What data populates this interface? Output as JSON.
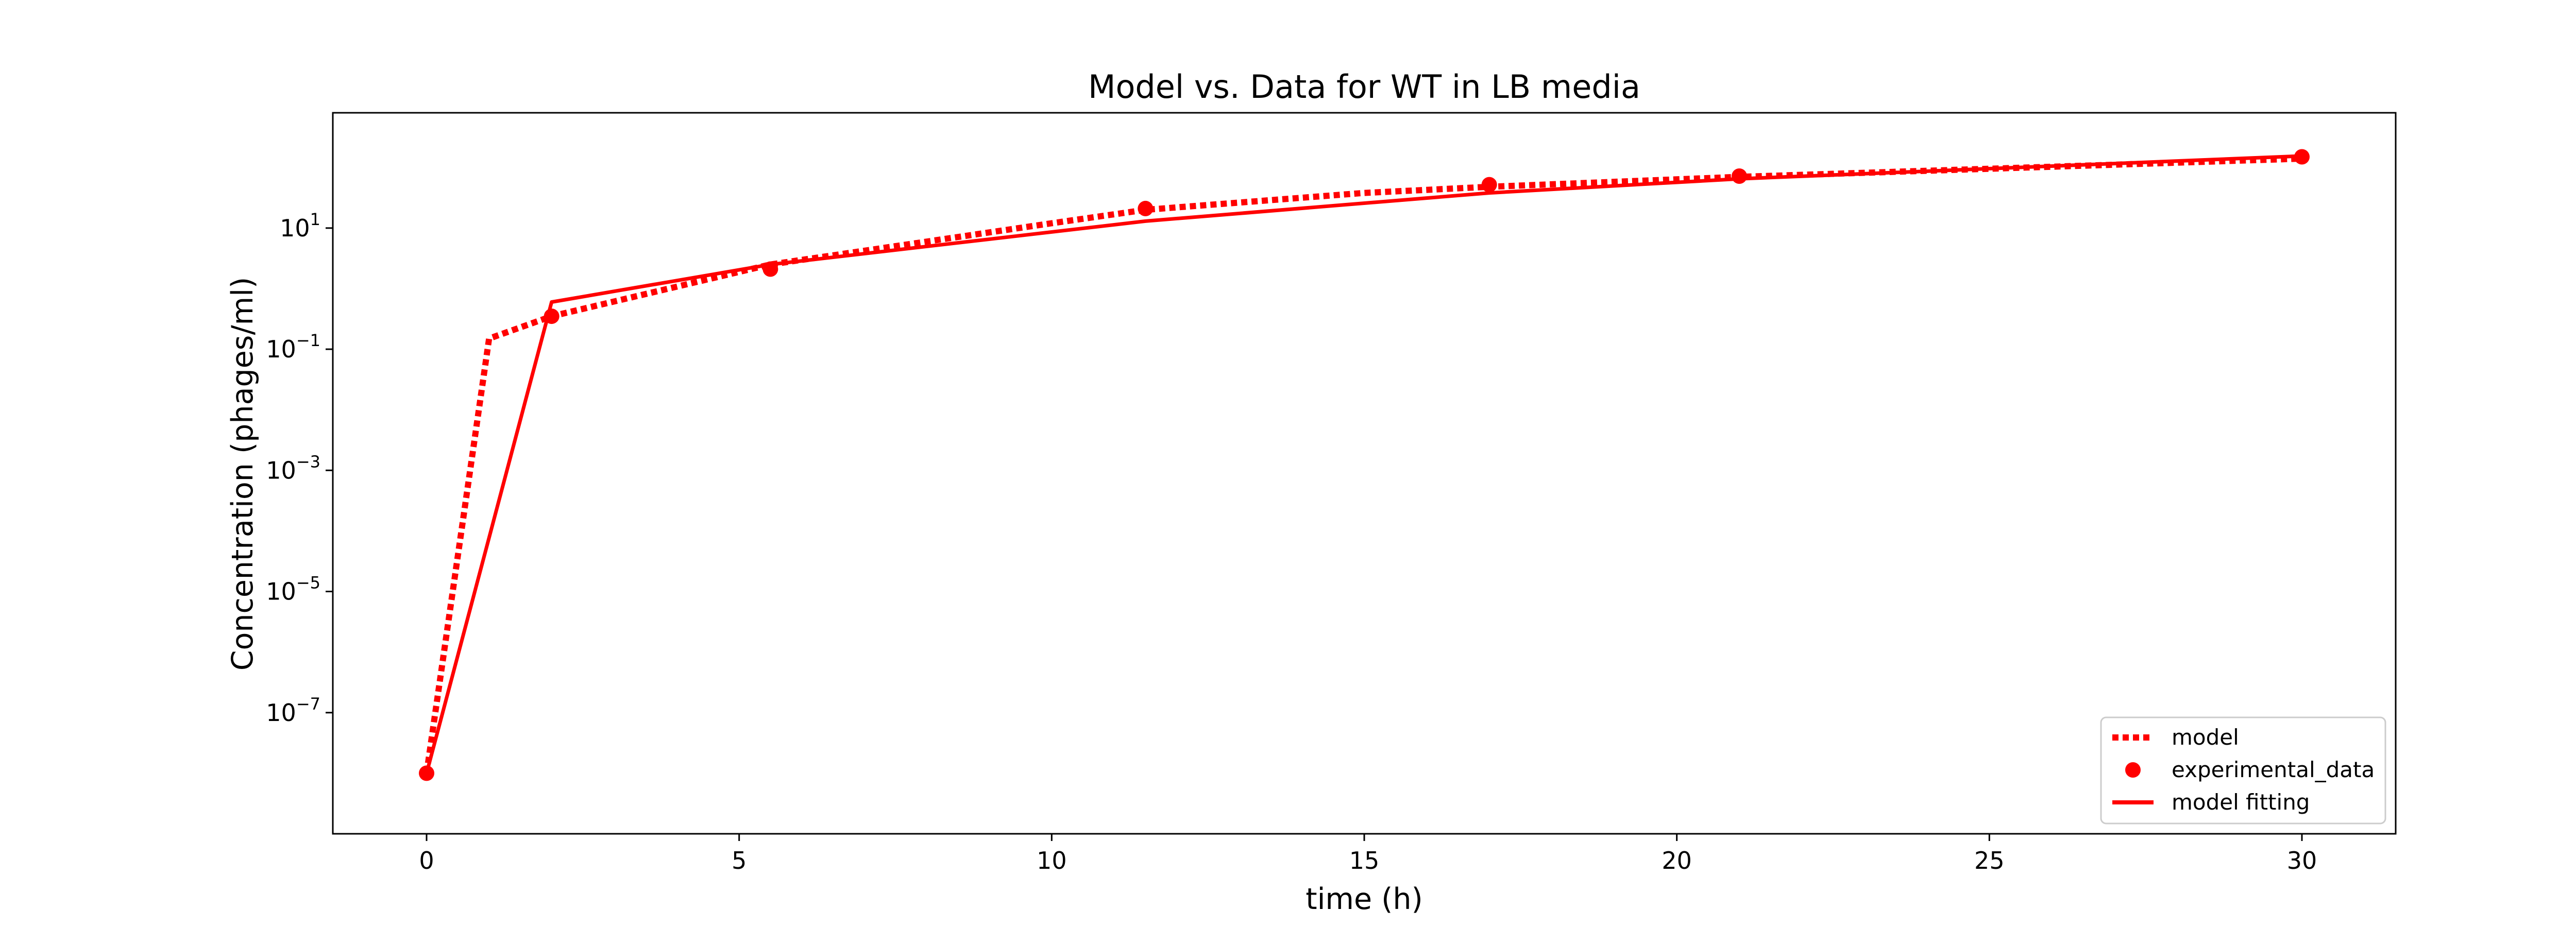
{
  "colors": {
    "series": "#ff0000",
    "axes": "#000000",
    "background": "#ffffff",
    "legend_border": "#cccccc"
  },
  "chart_data": {
    "type": "line",
    "title": "Model vs. Data for WT in LB media",
    "xlabel": "time (h)",
    "ylabel": "Concentration (phages/ml)",
    "xlim": [
      -1.5,
      31.5
    ],
    "ylim": [
      1e-09,
      800
    ],
    "yscale": "log",
    "grid": false,
    "x_ticks": [
      0,
      5,
      10,
      15,
      20,
      25,
      30
    ],
    "y_ticks": [
      {
        "value": 1e-07,
        "base": "10",
        "exp": "−7"
      },
      {
        "value": 1e-05,
        "base": "10",
        "exp": "−5"
      },
      {
        "value": 0.001,
        "base": "10",
        "exp": "−3"
      },
      {
        "value": 0.1,
        "base": "10",
        "exp": "−1"
      },
      {
        "value": 10,
        "base": "10",
        "exp": "1"
      }
    ],
    "legend": {
      "position": "lower-right",
      "entries": [
        "model",
        "experimental_data",
        "model fitting"
      ]
    },
    "series": [
      {
        "name": "model",
        "style": "dotted",
        "x": [
          0,
          1,
          2,
          5.5,
          10,
          11.5,
          15,
          17,
          21,
          30
        ],
        "y": [
          1e-08,
          0.15,
          0.35,
          2.5,
          12,
          20,
          38,
          48,
          70,
          140
        ]
      },
      {
        "name": "experimental_data",
        "style": "markers",
        "x": [
          0,
          2,
          5.5,
          11.5,
          17,
          21,
          30
        ],
        "y": [
          1e-08,
          0.35,
          2.1,
          21,
          52,
          72,
          150
        ]
      },
      {
        "name": "model fitting",
        "style": "solid",
        "x": [
          0,
          2,
          5.5,
          11.5,
          17,
          21,
          30
        ],
        "y": [
          1e-08,
          0.6,
          2.5,
          13,
          38,
          65,
          155
        ]
      }
    ]
  }
}
